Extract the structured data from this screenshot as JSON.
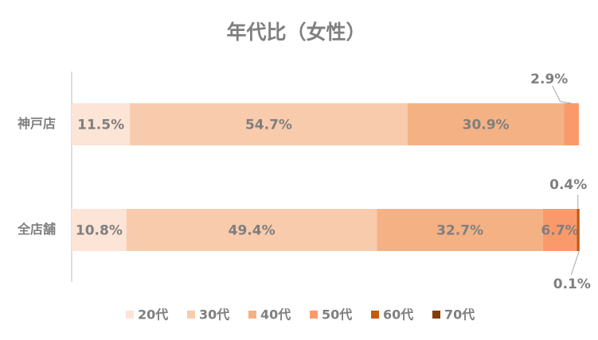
{
  "chart_data": {
    "type": "stacked-bar-horizontal",
    "title": "年代比（女性）",
    "categories": [
      "神戸店",
      "全店舗"
    ],
    "xlim": [
      0,
      100
    ],
    "legend": "bottom",
    "series": [
      {
        "name": "20代",
        "color": "#fce4d6",
        "values": [
          11.5,
          10.8
        ],
        "value_labels": [
          "11.5%",
          "10.8%"
        ]
      },
      {
        "name": "30代",
        "color": "#f8cbad",
        "values": [
          54.7,
          49.4
        ],
        "value_labels": [
          "54.7%",
          "49.4%"
        ]
      },
      {
        "name": "40代",
        "color": "#f4b183",
        "values": [
          30.9,
          32.7
        ],
        "value_labels": [
          "30.9%",
          "32.7%"
        ]
      },
      {
        "name": "50代",
        "color": "#fa9a6b",
        "values": [
          2.9,
          6.7
        ],
        "value_labels": [
          "2.9%",
          "6.7%"
        ]
      },
      {
        "name": "60代",
        "color": "#c55a11",
        "values": [
          0,
          0.4
        ],
        "value_labels": [
          null,
          "0.4%"
        ]
      },
      {
        "name": "70代",
        "color": "#843c0c",
        "values": [
          0,
          0.1
        ],
        "value_labels": [
          null,
          "0.1%"
        ]
      }
    ]
  }
}
